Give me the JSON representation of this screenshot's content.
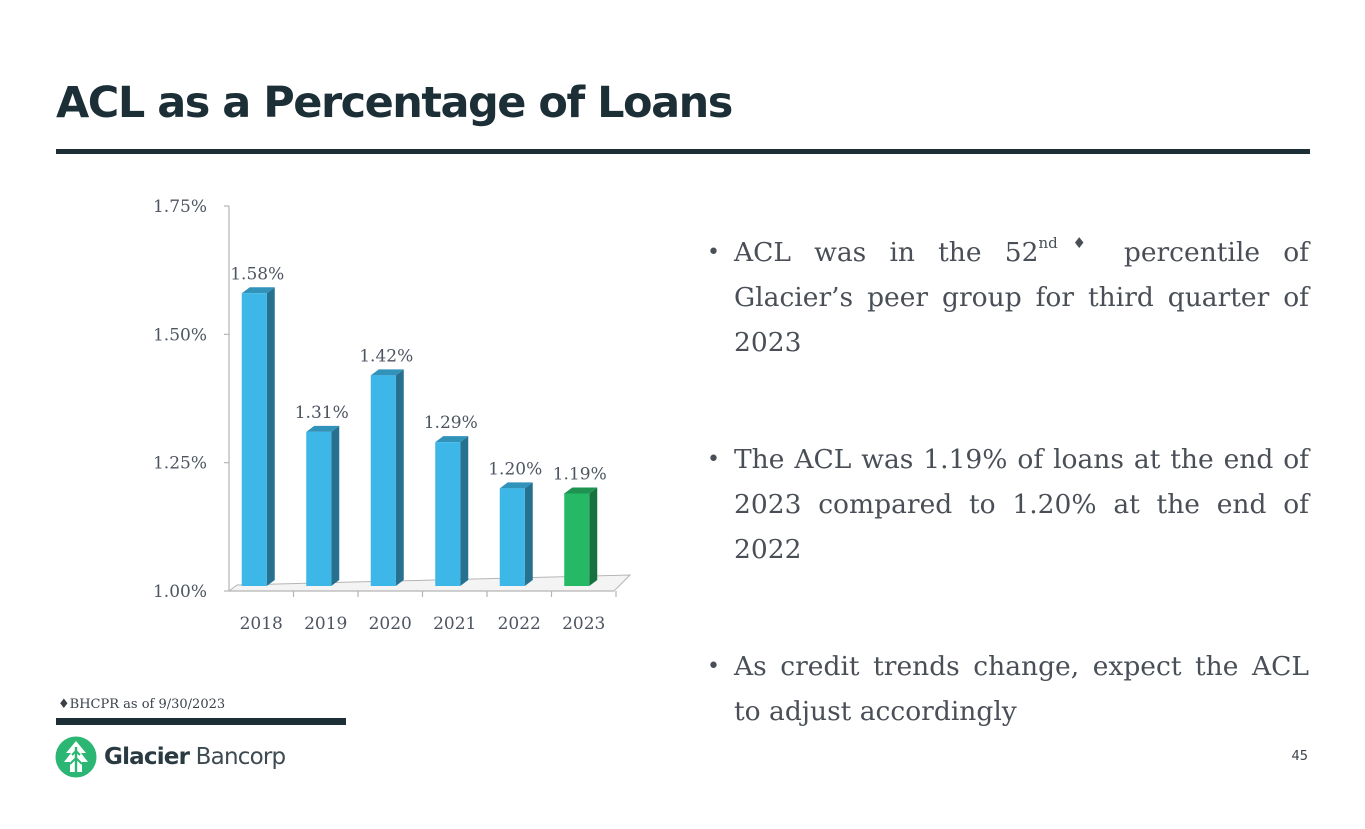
{
  "slide": {
    "title": "ACL as a Percentage of Loans",
    "page_number": "45"
  },
  "chart_data": {
    "type": "bar",
    "categories": [
      "2018",
      "2019",
      "2020",
      "2021",
      "2022",
      "2023"
    ],
    "values": [
      1.58,
      1.31,
      1.42,
      1.29,
      1.2,
      1.19
    ],
    "data_labels": [
      "1.58%",
      "1.31%",
      "1.42%",
      "1.29%",
      "1.20%",
      "1.19%"
    ],
    "y_ticks": [
      1.0,
      1.25,
      1.5,
      1.75
    ],
    "y_tick_labels": [
      "1.00%",
      "1.25%",
      "1.50%",
      "1.75%"
    ],
    "ylim": [
      1.0,
      1.75
    ],
    "bar_colors": [
      "#3db6e8",
      "#3db6e8",
      "#3db6e8",
      "#3db6e8",
      "#3db6e8",
      "#25b865"
    ],
    "style": "3d-column",
    "grid": false,
    "legend": "none"
  },
  "bullets": [
    {
      "pre": "ACL was in the 52",
      "sup": "nd♦",
      "post": " percentile of Glacier’s peer group for third quarter of 2023"
    },
    {
      "pre": "The ACL was 1.19% of loans at the end of 2023 compared to 1.20% at the end of 2022",
      "sup": "",
      "post": ""
    },
    {
      "pre": "As credit trends change, expect the ACL to adjust accordingly",
      "sup": "",
      "post": ""
    }
  ],
  "bullet_marker": "•",
  "footnote": "♦BHCPR as of 9/30/2023",
  "logo": {
    "name_bold": "Glacier",
    "name_regular": " Bancorp",
    "mark_icon": "glacier-tree-logo-icon",
    "colors": {
      "mark": "#2bb673",
      "text": "#2a3a42"
    }
  },
  "colors": {
    "title": "#1c2e36",
    "rule": "#1c2e36"
  }
}
